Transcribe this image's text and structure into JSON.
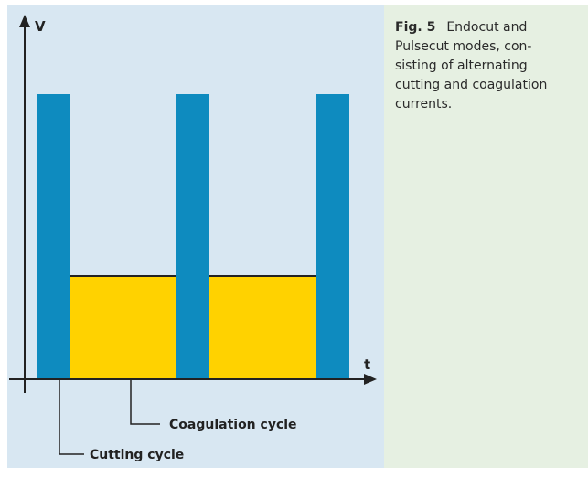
{
  "figure": {
    "axis_labels": {
      "y": "V",
      "x": "t"
    },
    "callouts": [
      "Coagulation cycle",
      "Cutting cycle"
    ],
    "caption": {
      "label": "Fig. 5",
      "lines": [
        "Endocut and",
        "Pulsecut modes, con-",
        "sisting of alternating",
        "cutting and coagulation",
        "currents."
      ]
    }
  }
}
